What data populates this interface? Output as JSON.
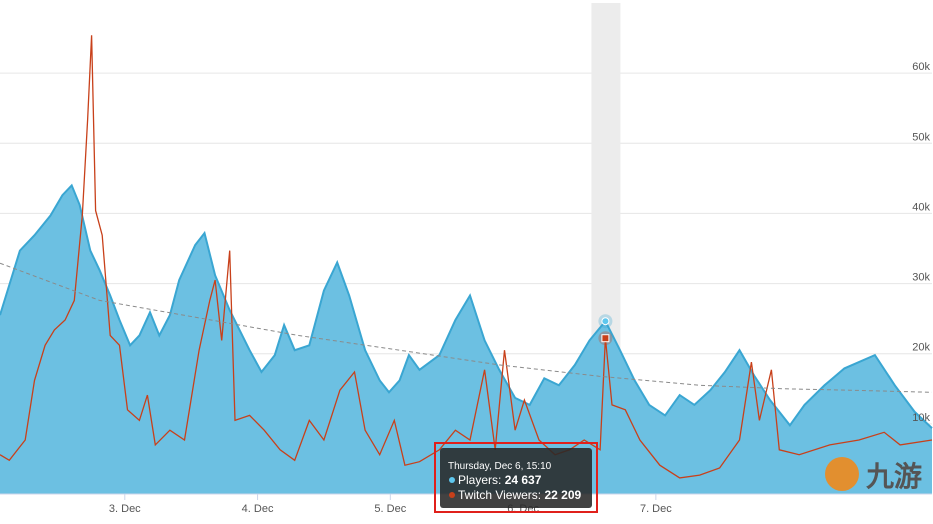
{
  "chart_data": {
    "type": "area_line",
    "xlim": [
      2.06,
      9.08
    ],
    "xticks": [
      {
        "value": 3,
        "label": "3. Dec"
      },
      {
        "value": 4,
        "label": "4. Dec"
      },
      {
        "value": 5,
        "label": "5. Dec"
      },
      {
        "value": 6,
        "label": "6. Dec"
      },
      {
        "value": 7,
        "label": "7. Dec"
      }
    ],
    "ylim": [
      0,
      70000
    ],
    "yticks": [
      {
        "value": 10000,
        "label": "10k"
      },
      {
        "value": 20000,
        "label": "20k"
      },
      {
        "value": 30000,
        "label": "30k"
      },
      {
        "value": 40000,
        "label": "40k"
      },
      {
        "value": 50000,
        "label": "50k"
      },
      {
        "value": 60000,
        "label": "60k"
      }
    ],
    "grid": true,
    "series": [
      {
        "name": "Players",
        "color": "#3aa6d2",
        "fill": "#6cc0e2",
        "kind": "area",
        "x": [
          2.06,
          2.13,
          2.21,
          2.32,
          2.44,
          2.53,
          2.6,
          2.66,
          2.74,
          2.81,
          2.89,
          2.96,
          3.04,
          3.11,
          3.19,
          3.26,
          3.34,
          3.41,
          3.53,
          3.6,
          3.68,
          3.79,
          3.94,
          4.03,
          4.13,
          4.2,
          4.28,
          4.39,
          4.5,
          4.6,
          4.69,
          4.81,
          4.92,
          4.99,
          5.07,
          5.14,
          5.22,
          5.37,
          5.49,
          5.6,
          5.71,
          5.82,
          5.94,
          6.05,
          6.16,
          6.27,
          6.39,
          6.5,
          6.62,
          6.73,
          6.84,
          6.95,
          7.07,
          7.18,
          7.29,
          7.41,
          7.52,
          7.63,
          7.74,
          7.86,
          8.01,
          8.12,
          8.27,
          8.42,
          8.65,
          8.8,
          8.95,
          9.08
        ],
        "values": [
          25500,
          29800,
          34700,
          36900,
          39700,
          42600,
          44000,
          41200,
          34700,
          31900,
          28300,
          24800,
          21200,
          22600,
          25900,
          22600,
          25500,
          30500,
          35500,
          37200,
          31200,
          26200,
          20500,
          17400,
          19800,
          24100,
          20500,
          21200,
          29000,
          33000,
          28300,
          20500,
          16200,
          14500,
          16200,
          19800,
          17700,
          19800,
          24800,
          28300,
          21900,
          17700,
          13700,
          12700,
          16500,
          15500,
          18400,
          21900,
          24637,
          20500,
          16200,
          12700,
          11200,
          14100,
          12700,
          14800,
          17400,
          20500,
          16900,
          13400,
          9800,
          12700,
          15500,
          17900,
          19800,
          15500,
          11700,
          9400
        ]
      },
      {
        "name": "Twitch Viewers",
        "color": "#c8401a",
        "kind": "line",
        "x": [
          2.06,
          2.13,
          2.25,
          2.32,
          2.4,
          2.47,
          2.55,
          2.62,
          2.68,
          2.72,
          2.75,
          2.78,
          2.83,
          2.89,
          2.96,
          3.02,
          3.11,
          3.17,
          3.23,
          3.34,
          3.45,
          3.56,
          3.64,
          3.68,
          3.73,
          3.79,
          3.83,
          3.94,
          4.05,
          4.17,
          4.28,
          4.39,
          4.5,
          4.62,
          4.73,
          4.81,
          4.92,
          5.03,
          5.11,
          5.22,
          5.37,
          5.49,
          5.6,
          5.71,
          5.79,
          5.86,
          5.94,
          6.01,
          6.12,
          6.24,
          6.35,
          6.46,
          6.58,
          6.62,
          6.67,
          6.77,
          6.88,
          7.03,
          7.18,
          7.33,
          7.48,
          7.63,
          7.72,
          7.78,
          7.87,
          7.93,
          8.08,
          8.31,
          8.53,
          8.72,
          8.84,
          9.08
        ],
        "values": [
          5600,
          4800,
          7700,
          16200,
          21200,
          23400,
          24800,
          27600,
          39700,
          53300,
          65400,
          40400,
          36900,
          22600,
          21200,
          12000,
          10500,
          14100,
          7000,
          9100,
          7700,
          20500,
          27600,
          30500,
          21900,
          34700,
          10500,
          11200,
          9100,
          6300,
          4800,
          10500,
          7700,
          14800,
          17400,
          9100,
          5600,
          10500,
          4100,
          4600,
          6300,
          9100,
          7700,
          17700,
          6300,
          20500,
          9100,
          13400,
          7700,
          5600,
          6300,
          7700,
          6300,
          22209,
          12700,
          12000,
          7700,
          4100,
          2300,
          2700,
          3700,
          7700,
          18800,
          10500,
          17700,
          6300,
          5600,
          7000,
          7700,
          8800,
          7000,
          7700
        ]
      },
      {
        "color": "#8a8a8a",
        "kind": "dashed",
        "x": [
          2.06,
          2.81,
          3.56,
          4.31,
          5.07,
          5.82,
          6.57,
          7.33,
          7.97,
          8.46,
          9.08
        ],
        "values": [
          32900,
          27600,
          25100,
          22600,
          20500,
          18400,
          16800,
          15500,
          15000,
          14800,
          14500
        ]
      }
    ],
    "tooltip": {
      "x": 6.62,
      "date": "Thursday, Dec 6, 15:10",
      "lines": [
        {
          "label": "Players: ",
          "value": 24637,
          "value_label": "24 637"
        },
        {
          "label": "Twitch Viewers: ",
          "value": 22209,
          "value_label": "22 209"
        }
      ]
    },
    "watermark": "九游"
  }
}
